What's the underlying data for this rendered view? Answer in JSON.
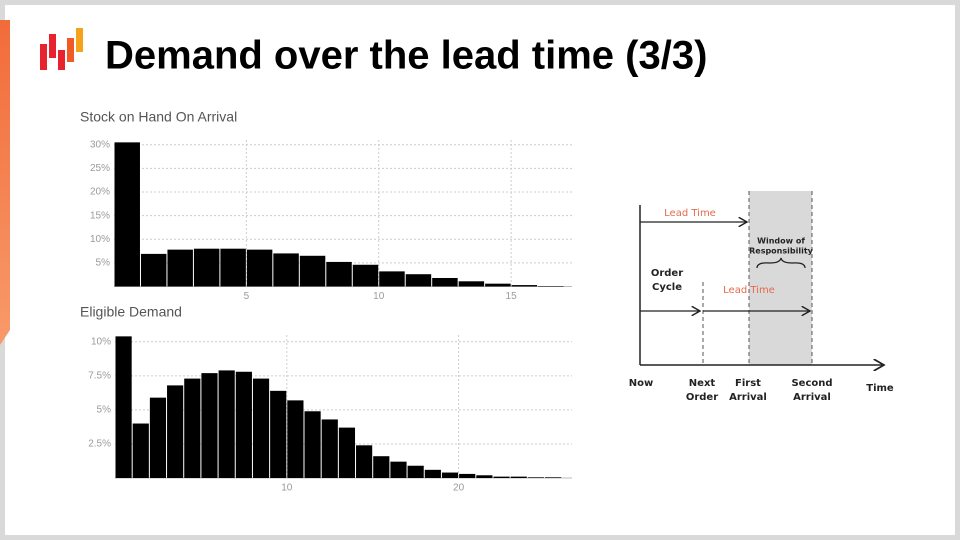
{
  "title": "Demand over the lead time (3/3)",
  "chart_data": [
    {
      "type": "histogram",
      "title": "Stock on Hand On Arrival",
      "color": "#000000",
      "grid": true,
      "bins": [
        0,
        1,
        2,
        3,
        4,
        5,
        6,
        7,
        8,
        9,
        10,
        11,
        12,
        13,
        14,
        15,
        16,
        17
      ],
      "values": [
        30.5,
        6.9,
        7.8,
        8.0,
        8.0,
        7.8,
        7.0,
        6.5,
        5.2,
        4.6,
        3.2,
        2.6,
        1.8,
        1.1,
        0.6,
        0.3,
        0.1
      ],
      "xlim": [
        0,
        17.3
      ],
      "xticks": [
        5,
        10,
        15
      ],
      "ylim": [
        0,
        31
      ],
      "yticks": [
        {
          "value": 5,
          "label": "5%"
        },
        {
          "value": 10,
          "label": "10%"
        },
        {
          "value": 15,
          "label": "15%"
        },
        {
          "value": 20,
          "label": "20%"
        },
        {
          "value": 25,
          "label": "25%"
        },
        {
          "value": 30,
          "label": "30%"
        }
      ]
    },
    {
      "type": "histogram",
      "title": "Eligible Demand",
      "color": "#000000",
      "grid": true,
      "bins": [
        0,
        1,
        2,
        3,
        4,
        5,
        6,
        7,
        8,
        9,
        10,
        11,
        12,
        13,
        14,
        15,
        16,
        17,
        18,
        19,
        20,
        21,
        22,
        23,
        24,
        25,
        26
      ],
      "values": [
        10.4,
        4.0,
        5.9,
        6.8,
        7.3,
        7.7,
        7.9,
        7.8,
        7.3,
        6.4,
        5.7,
        4.9,
        4.3,
        3.7,
        2.4,
        1.6,
        1.2,
        0.9,
        0.6,
        0.4,
        0.3,
        0.2,
        0.1,
        0.1,
        0.05,
        0.05
      ],
      "xlim": [
        0,
        26.6
      ],
      "xticks": [
        10,
        20
      ],
      "ylim": [
        0,
        10.5
      ],
      "yticks": [
        {
          "value": 2.5,
          "label": "2.5%"
        },
        {
          "value": 5,
          "label": "5%"
        },
        {
          "value": 7.5,
          "label": "7.5%"
        },
        {
          "value": 10,
          "label": "10%"
        }
      ]
    }
  ],
  "diagram": {
    "lead_time_top": "Lead Time",
    "window": [
      "Window of",
      "Responsibility"
    ],
    "order_cycle": [
      "Order",
      "Cycle"
    ],
    "lead_time_bottom": "Lead Time",
    "now": "Now",
    "next_order": [
      "Next",
      "Order"
    ],
    "first_arrival": [
      "First",
      "Arrival"
    ],
    "second_arrival": [
      "Second",
      "Arrival"
    ],
    "time": "Time"
  }
}
